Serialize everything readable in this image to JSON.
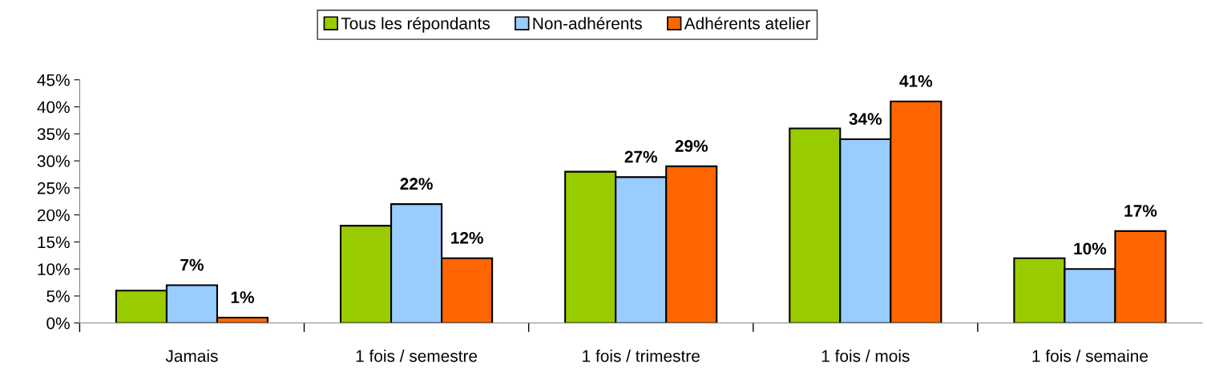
{
  "chart_data": {
    "type": "bar",
    "categories": [
      "Jamais",
      "1 fois / semestre",
      "1 fois / trimestre",
      "1 fois / mois",
      "1 fois / semaine"
    ],
    "series": [
      {
        "name": "Tous les répondants",
        "color": "#99cc00",
        "values": [
          6,
          18,
          28,
          36,
          12
        ]
      },
      {
        "name": "Non-adhérents",
        "color": "#99ccff",
        "values": [
          7,
          22,
          27,
          34,
          10
        ],
        "value_labels": [
          "7%",
          "22%",
          "27%",
          "34%",
          "10%"
        ]
      },
      {
        "name": "Adhérents atelier",
        "color": "#ff6600",
        "values": [
          1,
          12,
          29,
          41,
          17
        ],
        "value_labels": [
          "1%",
          "12%",
          "29%",
          "41%",
          "17%"
        ]
      }
    ],
    "ylim": [
      0,
      45
    ],
    "yticks": [
      {
        "value": 0,
        "label": "0%"
      },
      {
        "value": 5,
        "label": "5%"
      },
      {
        "value": 10,
        "label": "10%"
      },
      {
        "value": 15,
        "label": "15%"
      },
      {
        "value": 20,
        "label": "20%"
      },
      {
        "value": 25,
        "label": "25%"
      },
      {
        "value": 30,
        "label": "30%"
      },
      {
        "value": 35,
        "label": "35%"
      },
      {
        "value": 40,
        "label": "40%"
      },
      {
        "value": 45,
        "label": "45%"
      }
    ],
    "grid": false,
    "legend": "top"
  }
}
